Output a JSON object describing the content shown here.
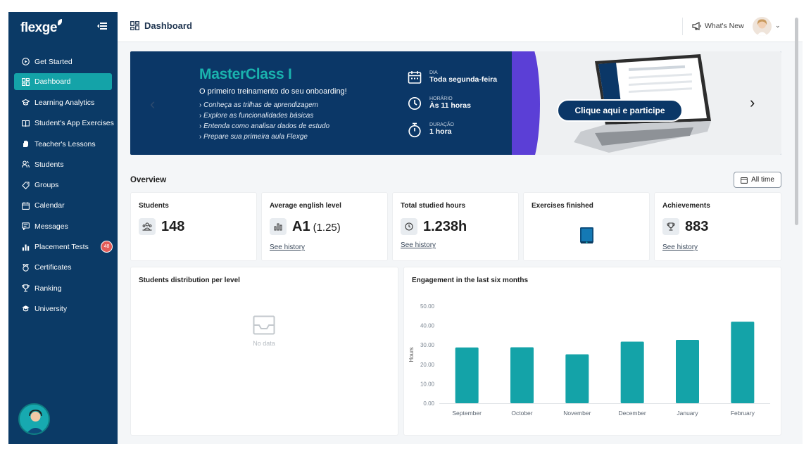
{
  "app": {
    "logo": "flexge"
  },
  "sidebar": {
    "items": [
      {
        "label": "Get Started",
        "icon": "play-circle-icon"
      },
      {
        "label": "Dashboard",
        "icon": "dashboard-icon",
        "active": true
      },
      {
        "label": "Learning Analytics",
        "icon": "graduation-cap-icon"
      },
      {
        "label": "Student's App Exercises",
        "icon": "book-icon"
      },
      {
        "label": "Teacher's Lessons",
        "icon": "hand-icon"
      },
      {
        "label": "Students",
        "icon": "users-icon"
      },
      {
        "label": "Groups",
        "icon": "tag-icon"
      },
      {
        "label": "Calendar",
        "icon": "calendar-icon"
      },
      {
        "label": "Messages",
        "icon": "message-icon"
      },
      {
        "label": "Placement Tests",
        "icon": "bar-chart-icon",
        "badge": "48"
      },
      {
        "label": "Certificates",
        "icon": "medal-icon"
      },
      {
        "label": "Ranking",
        "icon": "trophy-icon"
      },
      {
        "label": "University",
        "icon": "mortarboard-icon"
      }
    ]
  },
  "header": {
    "title": "Dashboard",
    "whats_new": "What's New"
  },
  "banner": {
    "title": "MasterClass I",
    "subtitle": "O primeiro treinamento do seu onboarding!",
    "bullets": [
      "Conheça as trilhas de aprendizagem",
      "Explore as funcionalidades básicas",
      "Entenda como analisar dados de estudo",
      "Prepare sua primeira aula Flexge"
    ],
    "info": [
      {
        "label": "DIA",
        "value": "Toda segunda-feira",
        "icon": "calendar-icon"
      },
      {
        "label": "HORÁRIO",
        "value": "Às 11 horas",
        "icon": "clock-icon"
      },
      {
        "label": "DURAÇÃO",
        "value": "1 hora",
        "icon": "stopwatch-icon"
      }
    ],
    "cta": "Clique aqui e participe"
  },
  "overview": {
    "title": "Overview",
    "filter": "All time",
    "cards": [
      {
        "title": "Students",
        "value": "148",
        "icon": "students-icon"
      },
      {
        "title": "Average english level",
        "value": "A1",
        "extra": "(1.25)",
        "link": "See history",
        "icon": "level-icon"
      },
      {
        "title": "Total studied hours",
        "value": "1.238h",
        "link": "See history",
        "icon": "clock-icon"
      },
      {
        "title": "Exercises finished",
        "icon": "book-icon"
      },
      {
        "title": "Achievements",
        "value": "883",
        "link": "See history",
        "icon": "trophy-icon"
      }
    ],
    "distribution": {
      "title": "Students distribution per level",
      "empty": "No data"
    }
  },
  "chart_data": {
    "type": "bar",
    "title": "Engagement in the last six months",
    "ylabel": "Hours",
    "xlabel": "",
    "categories": [
      "September",
      "October",
      "November",
      "December",
      "January",
      "February"
    ],
    "values": [
      28.7,
      28.8,
      25.2,
      31.7,
      32.6,
      42.0
    ],
    "ylim": [
      0,
      50
    ],
    "yticks": [
      "0.00",
      "10.00",
      "20.00",
      "30.00",
      "40.00",
      "50.00"
    ],
    "bar_color": "#14a3a8",
    "grid": false
  }
}
